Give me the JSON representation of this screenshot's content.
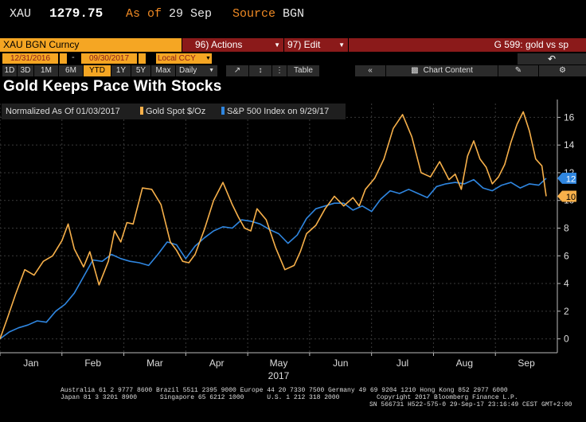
{
  "quote": {
    "ticker": "XAU",
    "price": "1279.75",
    "as_of_label": "As of",
    "as_of_date": "29 Sep",
    "source_label": "Source",
    "source_value": "BGN"
  },
  "toolbar": {
    "security": "XAU BGN Curncy",
    "actions": "96) Actions",
    "edit": "97) Edit",
    "graph_id": "G 599: gold vs sp"
  },
  "range": {
    "start": "12/31/2016",
    "dash": "-",
    "end": "09/30/2017",
    "currency": "Local CCY",
    "back_icon": "undo-arrow-icon"
  },
  "periods": [
    "1D",
    "3D",
    "1M",
    "6M",
    "YTD",
    "1Y",
    "5Y",
    "Max"
  ],
  "selected_period": "YTD",
  "frequency": "Daily",
  "tools": {
    "table": "Table",
    "chart_content": "Chart Content"
  },
  "chart_title": "Gold Keeps Pace With Stocks",
  "legend": {
    "normalized": "Normalized As Of 01/03/2017",
    "gold": "Gold Spot $/Oz",
    "sp": "S&P 500 Index  on 9/29/17"
  },
  "colors": {
    "gold": "#f7b04a",
    "sp": "#2f86e0",
    "orange": "#f5a623",
    "red": "#8b1a1a"
  },
  "chart_data": {
    "type": "line",
    "title": "Gold Keeps Pace With Stocks",
    "xlabel": "2017",
    "ylabel": "",
    "x_ticks": [
      "Jan",
      "Feb",
      "Mar",
      "Apr",
      "May",
      "Jun",
      "Jul",
      "Aug",
      "Sep"
    ],
    "x_range": [
      0,
      9
    ],
    "ylim": [
      -1,
      17
    ],
    "y_ticks": [
      0,
      2,
      4,
      6,
      8,
      10,
      12,
      14,
      16
    ],
    "last_value_labels": [
      {
        "series": "S&P 500 Index",
        "value": "12"
      },
      {
        "series": "Gold Spot $/Oz",
        "value": "10"
      }
    ],
    "series": [
      {
        "name": "Gold Spot $/Oz",
        "x": [
          0,
          0.12,
          0.25,
          0.4,
          0.55,
          0.7,
          0.85,
          1.0,
          1.1,
          1.2,
          1.35,
          1.45,
          1.6,
          1.75,
          1.85,
          1.95,
          2.05,
          2.15,
          2.3,
          2.45,
          2.6,
          2.75,
          2.85,
          2.95,
          3.05,
          3.15,
          3.3,
          3.45,
          3.6,
          3.75,
          3.85,
          3.95,
          4.05,
          4.15,
          4.3,
          4.45,
          4.6,
          4.75,
          4.85,
          4.95,
          5.1,
          5.25,
          5.4,
          5.55,
          5.7,
          5.8,
          5.9,
          6.05,
          6.2,
          6.35,
          6.5,
          6.65,
          6.8,
          6.95,
          7.1,
          7.25,
          7.35,
          7.45,
          7.55,
          7.65,
          7.75,
          7.85,
          7.95,
          8.05,
          8.15,
          8.25,
          8.35,
          8.45,
          8.55,
          8.65,
          8.75,
          8.82
        ],
        "values": [
          0,
          1.5,
          3.2,
          5.0,
          4.6,
          5.6,
          6.0,
          7.1,
          8.3,
          6.5,
          5.2,
          6.3,
          3.9,
          5.6,
          7.8,
          7.0,
          8.4,
          8.3,
          10.9,
          10.8,
          9.7,
          7.0,
          6.4,
          5.6,
          5.5,
          6.1,
          7.9,
          10.0,
          11.3,
          9.7,
          8.8,
          8.0,
          7.8,
          9.4,
          8.6,
          6.6,
          5.0,
          5.3,
          6.3,
          7.6,
          8.2,
          9.4,
          10.3,
          9.6,
          10.2,
          9.6,
          10.8,
          11.6,
          13.0,
          15.2,
          16.2,
          14.6,
          12.0,
          11.7,
          12.8,
          11.5,
          11.9,
          10.8,
          13.2,
          14.3,
          13.0,
          12.4,
          11.2,
          11.7,
          12.6,
          14.2,
          15.5,
          16.4,
          15.0,
          13.0,
          12.5,
          10.3
        ]
      },
      {
        "name": "S&P 500 Index",
        "x": [
          0,
          0.15,
          0.3,
          0.45,
          0.6,
          0.75,
          0.9,
          1.05,
          1.2,
          1.35,
          1.5,
          1.65,
          1.8,
          1.95,
          2.1,
          2.25,
          2.4,
          2.55,
          2.7,
          2.85,
          3.0,
          3.15,
          3.3,
          3.45,
          3.6,
          3.75,
          3.9,
          4.05,
          4.2,
          4.35,
          4.5,
          4.65,
          4.8,
          4.95,
          5.1,
          5.25,
          5.4,
          5.55,
          5.7,
          5.85,
          6.0,
          6.15,
          6.3,
          6.45,
          6.6,
          6.75,
          6.9,
          7.05,
          7.2,
          7.35,
          7.5,
          7.65,
          7.8,
          7.95,
          8.1,
          8.25,
          8.4,
          8.55,
          8.7,
          8.82
        ],
        "values": [
          0,
          0.5,
          0.8,
          1.0,
          1.3,
          1.2,
          2.0,
          2.5,
          3.3,
          4.5,
          5.7,
          5.6,
          6.1,
          5.8,
          5.6,
          5.5,
          5.3,
          6.1,
          7.0,
          6.8,
          5.8,
          6.7,
          7.3,
          7.8,
          8.1,
          8.0,
          8.6,
          8.5,
          8.3,
          7.9,
          7.6,
          6.9,
          7.5,
          8.7,
          9.4,
          9.6,
          9.8,
          9.8,
          9.3,
          9.6,
          9.2,
          10.1,
          10.7,
          10.5,
          10.8,
          10.5,
          10.2,
          11.0,
          11.2,
          11.3,
          11.2,
          11.5,
          10.9,
          10.7,
          11.1,
          11.3,
          10.9,
          11.2,
          11.1,
          11.6
        ]
      }
    ]
  },
  "footer": {
    "line1": "Australia 61 2 9777 8600 Brazil 5511 2395 9000 Europe 44 20 7330 7500 Germany 49 69 9204 1210 Hong Kong 852 2977 6000",
    "line2": "Japan 81 3 3201 8900      Singapore 65 6212 1000      U.S. 1 212 318 2000",
    "line2b": "Copyright 2017 Bloomberg Finance L.P.",
    "line3": "SN 566731 H522-575-0 29-Sep-17 23:16:49 CEST GMT+2:00"
  }
}
